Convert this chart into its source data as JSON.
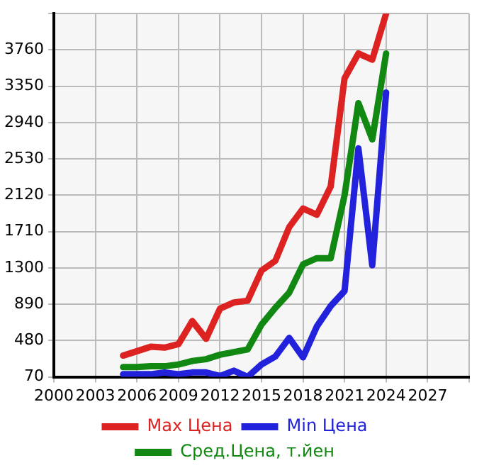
{
  "chart_data": {
    "type": "line",
    "x": [
      2005,
      2006,
      2007,
      2008,
      2009,
      2010,
      2011,
      2012,
      2013,
      2014,
      2015,
      2016,
      2017,
      2018,
      2019,
      2020,
      2021,
      2022,
      2023,
      2024
    ],
    "series": [
      {
        "name": "Max Цена",
        "color": "#dd2222",
        "values": [
          310,
          360,
          410,
          400,
          440,
          700,
          500,
          840,
          910,
          930,
          1270,
          1380,
          1760,
          1970,
          1900,
          2220,
          3440,
          3720,
          3650,
          4170
        ]
      },
      {
        "name": "Min Цена",
        "color": "#2222dd",
        "values": [
          100,
          100,
          100,
          120,
          100,
          120,
          120,
          80,
          140,
          70,
          210,
          300,
          510,
          290,
          640,
          870,
          1040,
          2650,
          1330,
          3280
        ]
      },
      {
        "name": "Сред.Цена, т.йен",
        "color": "#118811",
        "values": [
          180,
          180,
          190,
          190,
          210,
          250,
          270,
          320,
          350,
          380,
          660,
          850,
          1020,
          1340,
          1410,
          1410,
          2120,
          3160,
          2750,
          3720
        ]
      }
    ],
    "xlim": [
      2000,
      2030
    ],
    "xticks": [
      2000,
      2003,
      2006,
      2009,
      2012,
      2015,
      2018,
      2021,
      2024,
      2027,
      {
        "value": 2030,
        "label": null
      }
    ],
    "ylim": [
      70,
      4170
    ],
    "yticks": [
      70,
      480,
      890,
      1300,
      1710,
      2120,
      2530,
      2940,
      3350,
      3760,
      {
        "value": 4170,
        "label": null
      }
    ],
    "grid": true,
    "legend": "bottom",
    "marker": "none",
    "line_style": "solid"
  }
}
